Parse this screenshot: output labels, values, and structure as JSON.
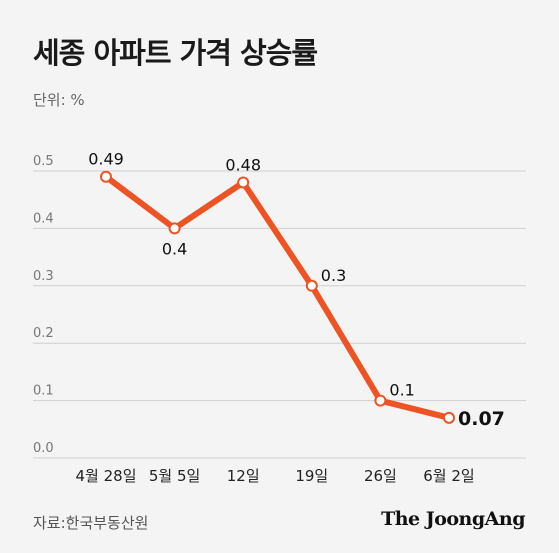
{
  "title": "세종 아파트 가격 상승률",
  "unit_label": "단위: %",
  "source": "자료:한국부동산원",
  "brand": "The JoongAng",
  "colors": {
    "line": "#ee5324",
    "grid": "#cfcfcf",
    "background": "#f4f4f4"
  },
  "chart_data": {
    "type": "line",
    "categories": [
      "4월 28일",
      "5월 5일",
      "12일",
      "19일",
      "26일",
      "6월 2일"
    ],
    "values": [
      0.49,
      0.4,
      0.48,
      0.3,
      0.1,
      0.07
    ],
    "value_labels": [
      "0.49",
      "0.4",
      "0.48",
      "0.3",
      "0.1",
      "0.07"
    ],
    "yticks": [
      "0.0",
      "0.1",
      "0.2",
      "0.3",
      "0.4",
      "0.5"
    ],
    "ylim": [
      0,
      0.5
    ],
    "grid": true,
    "legend": "none"
  }
}
